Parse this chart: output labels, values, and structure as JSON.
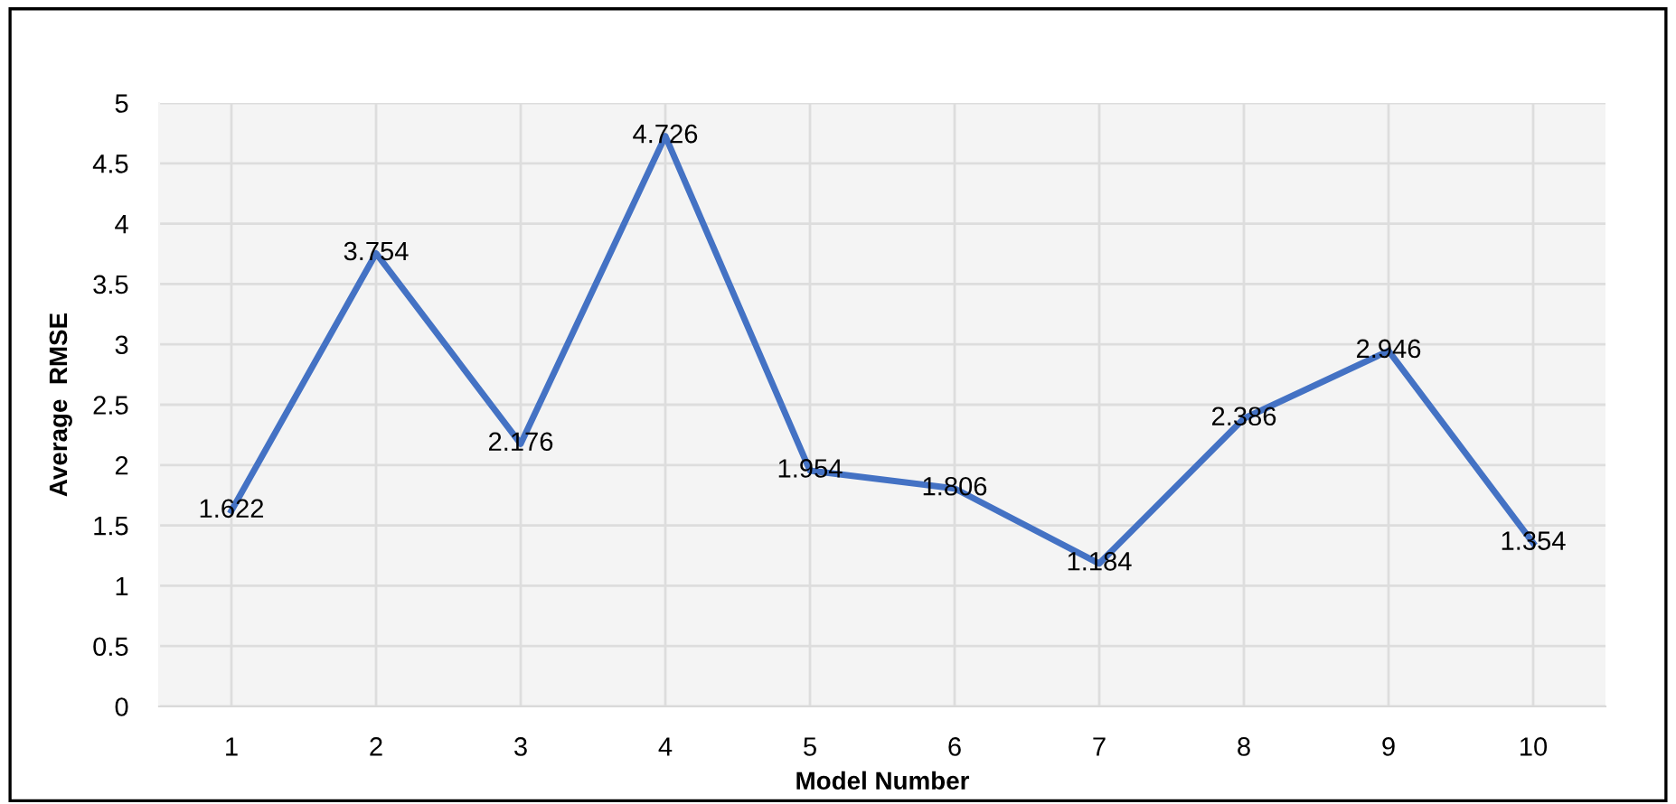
{
  "chart_data": {
    "type": "line",
    "xlabel": "Model Number",
    "ylabel": "Average  RMSE",
    "categories": [
      "1",
      "2",
      "3",
      "4",
      "5",
      "6",
      "7",
      "8",
      "9",
      "10"
    ],
    "series": [
      {
        "color": "#4472c4",
        "values": [
          1.622,
          3.754,
          2.176,
          4.726,
          1.954,
          1.806,
          1.184,
          2.386,
          2.946,
          1.354
        ]
      }
    ],
    "ylim": [
      0,
      5
    ],
    "yticks": [
      0,
      0.5,
      1,
      1.5,
      2,
      2.5,
      3,
      3.5,
      4,
      4.5,
      5
    ],
    "grid": true,
    "data_labels": true,
    "marker": "none",
    "line_style": "solid"
  }
}
